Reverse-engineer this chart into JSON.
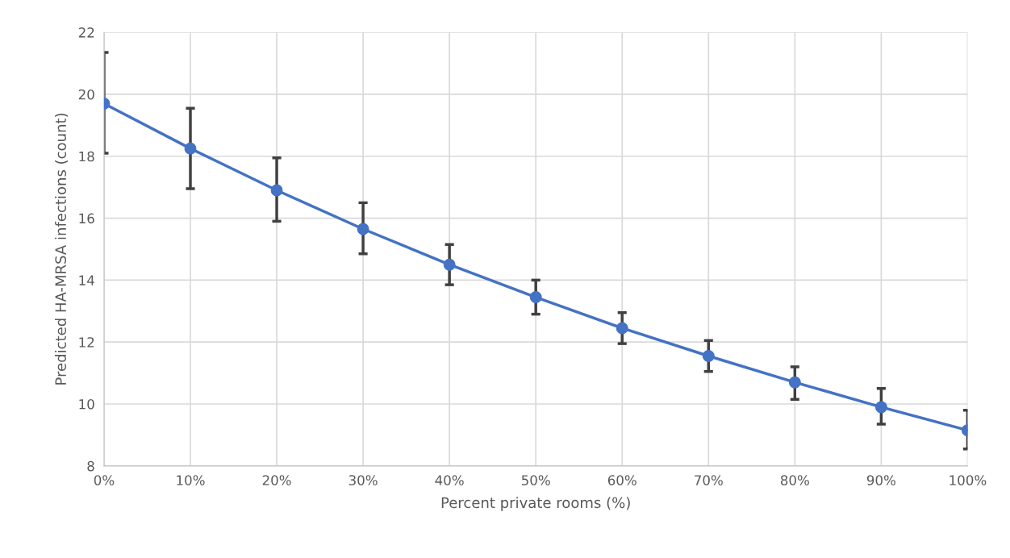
{
  "chart_data": {
    "type": "line",
    "xlabel": "Percent private rooms (%)",
    "ylabel": "Predicted HA-MRSA infections (count)",
    "x": [
      0,
      10,
      20,
      30,
      40,
      50,
      60,
      70,
      80,
      90,
      100
    ],
    "series": [
      {
        "color": "#4472c4",
        "values": [
          19.7,
          18.25,
          16.9,
          15.65,
          14.5,
          13.45,
          12.45,
          11.55,
          10.7,
          9.9,
          9.15
        ],
        "errors": [
          [
            18.1,
            21.35
          ],
          [
            16.95,
            19.55
          ],
          [
            15.9,
            17.95
          ],
          [
            14.85,
            16.5
          ],
          [
            13.85,
            15.15
          ],
          [
            12.9,
            14.0
          ],
          [
            11.95,
            12.95
          ],
          [
            11.05,
            12.05
          ],
          [
            10.15,
            11.2
          ],
          [
            9.35,
            10.5
          ],
          [
            8.55,
            9.8
          ]
        ]
      }
    ],
    "xlim": [
      0,
      100
    ],
    "xticks": [
      {
        "value": 0,
        "label": "0%"
      },
      {
        "value": 10,
        "label": "10%"
      },
      {
        "value": 20,
        "label": "20%"
      },
      {
        "value": 30,
        "label": "30%"
      },
      {
        "value": 40,
        "label": "40%"
      },
      {
        "value": 50,
        "label": "50%"
      },
      {
        "value": 60,
        "label": "60%"
      },
      {
        "value": 70,
        "label": "70%"
      },
      {
        "value": 80,
        "label": "80%"
      },
      {
        "value": 90,
        "label": "90%"
      },
      {
        "value": 100,
        "label": "100%"
      }
    ],
    "ylim": [
      8,
      22
    ],
    "yticks": [
      8,
      10,
      12,
      14,
      16,
      18,
      20,
      22
    ],
    "grid": true,
    "marker": "circle",
    "line_style": "solid",
    "legend": false
  }
}
